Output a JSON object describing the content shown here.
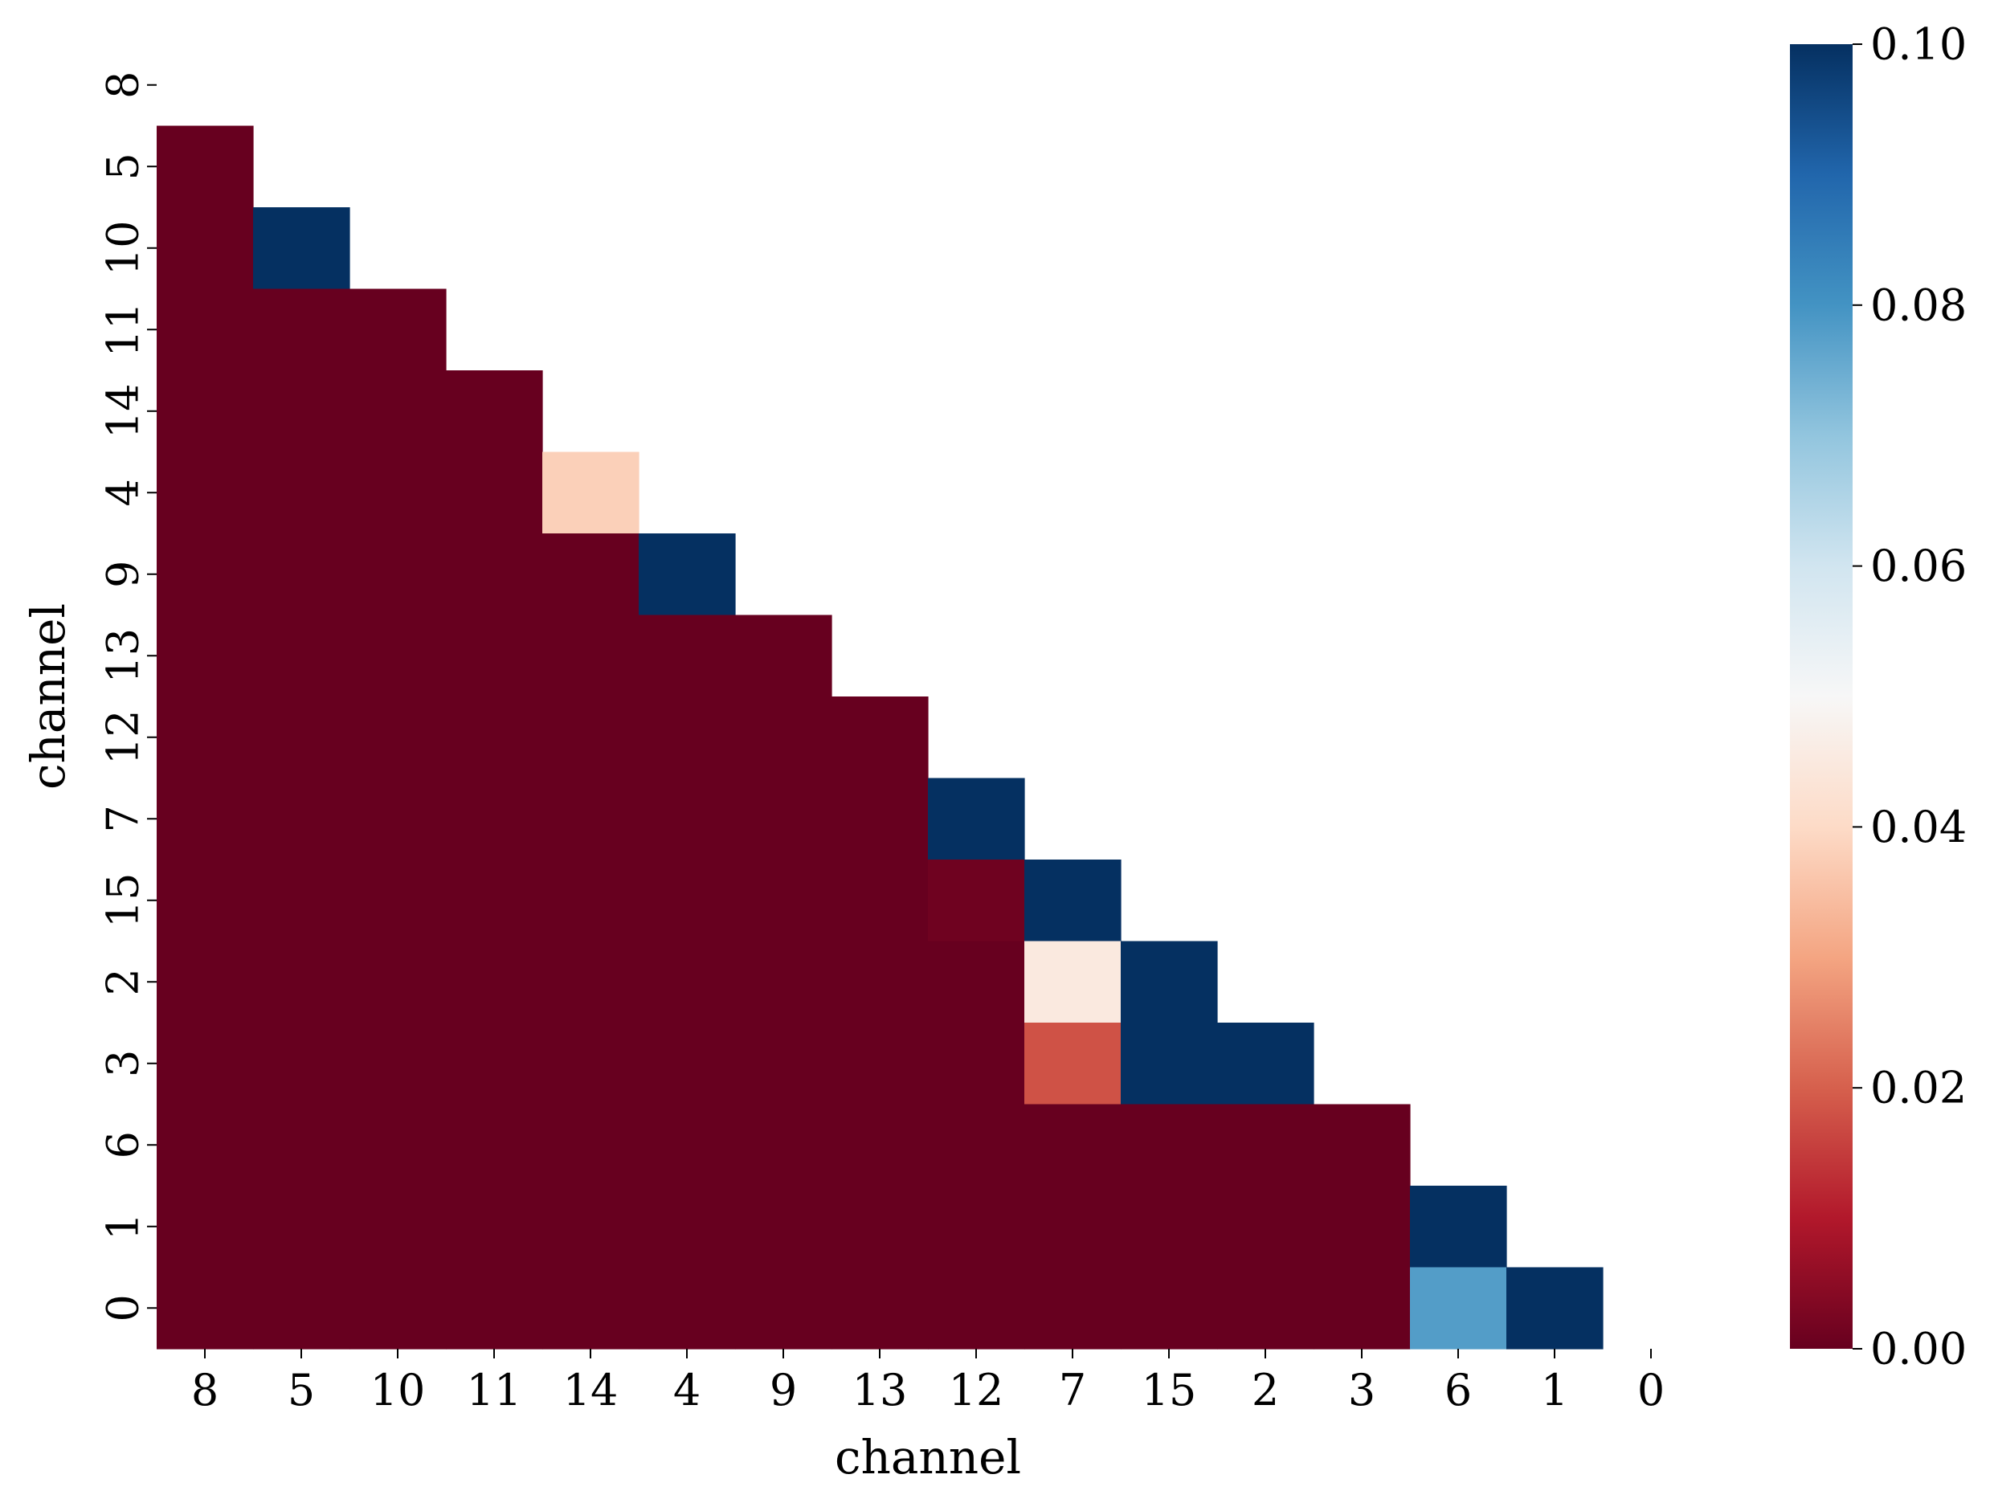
{
  "chart_data": {
    "type": "heatmap",
    "title": "",
    "xlabel": "channel",
    "ylabel": "channel",
    "x_categories": [
      "8",
      "5",
      "10",
      "11",
      "14",
      "4",
      "9",
      "13",
      "12",
      "7",
      "15",
      "2",
      "3",
      "6",
      "1",
      "0"
    ],
    "y_categories": [
      "8",
      "5",
      "10",
      "11",
      "14",
      "4",
      "9",
      "13",
      "12",
      "7",
      "15",
      "2",
      "3",
      "6",
      "1",
      "0"
    ],
    "mask": "upper-triangle-including-diagonal",
    "values": [
      [
        null,
        null,
        null,
        null,
        null,
        null,
        null,
        null,
        null,
        null,
        null,
        null,
        null,
        null,
        null,
        null
      ],
      [
        0.0,
        null,
        null,
        null,
        null,
        null,
        null,
        null,
        null,
        null,
        null,
        null,
        null,
        null,
        null,
        null
      ],
      [
        0.0,
        0.1,
        null,
        null,
        null,
        null,
        null,
        null,
        null,
        null,
        null,
        null,
        null,
        null,
        null,
        null
      ],
      [
        0.0,
        0.0,
        0.0,
        null,
        null,
        null,
        null,
        null,
        null,
        null,
        null,
        null,
        null,
        null,
        null,
        null
      ],
      [
        0.0,
        0.0,
        0.0,
        0.0,
        null,
        null,
        null,
        null,
        null,
        null,
        null,
        null,
        null,
        null,
        null,
        null
      ],
      [
        0.0,
        0.0,
        0.0,
        0.0,
        0.038,
        null,
        null,
        null,
        null,
        null,
        null,
        null,
        null,
        null,
        null,
        null
      ],
      [
        0.0,
        0.0,
        0.0,
        0.0,
        0.0,
        0.1,
        null,
        null,
        null,
        null,
        null,
        null,
        null,
        null,
        null,
        null
      ],
      [
        0.0,
        0.0,
        0.0,
        0.0,
        0.0,
        0.0,
        0.0,
        null,
        null,
        null,
        null,
        null,
        null,
        null,
        null,
        null
      ],
      [
        0.0,
        0.0,
        0.0,
        0.0,
        0.0,
        0.0,
        0.0,
        0.0,
        null,
        null,
        null,
        null,
        null,
        null,
        null,
        null
      ],
      [
        0.0,
        0.0,
        0.0,
        0.0,
        0.0,
        0.0,
        0.0,
        0.0,
        0.1,
        null,
        null,
        null,
        null,
        null,
        null,
        null
      ],
      [
        0.0,
        0.0,
        0.0,
        0.0,
        0.0,
        0.0,
        0.0,
        0.0,
        0.001,
        0.1,
        null,
        null,
        null,
        null,
        null,
        null
      ],
      [
        0.0,
        0.0,
        0.0,
        0.0,
        0.0,
        0.0,
        0.0,
        0.0,
        0.0,
        0.045,
        0.1,
        null,
        null,
        null,
        null,
        null
      ],
      [
        0.0,
        0.0,
        0.0,
        0.0,
        0.0,
        0.0,
        0.0,
        0.0,
        0.0,
        0.018,
        0.1,
        0.1,
        null,
        null,
        null,
        null
      ],
      [
        0.0,
        0.0,
        0.0,
        0.0,
        0.0,
        0.0,
        0.0,
        0.0,
        0.0,
        0.0,
        0.0,
        0.0,
        0.0,
        null,
        null,
        null
      ],
      [
        0.0,
        0.0,
        0.0,
        0.0,
        0.0,
        0.0,
        0.0,
        0.0,
        0.0,
        0.0,
        0.0,
        0.0,
        0.0,
        0.1,
        null,
        null
      ],
      [
        0.0,
        0.0,
        0.0,
        0.0,
        0.0,
        0.0,
        0.0,
        0.0,
        0.0,
        0.0,
        0.0,
        0.0,
        0.0,
        0.078,
        0.1,
        null
      ]
    ],
    "colorbar": {
      "colormap": "RdBu",
      "vmin": 0.0,
      "vmax": 0.1,
      "ticks": [
        0.0,
        0.02,
        0.04,
        0.06,
        0.08,
        0.1
      ],
      "tick_labels": [
        "0.00",
        "0.02",
        "0.04",
        "0.06",
        "0.08",
        "0.10"
      ]
    },
    "grid": false
  }
}
